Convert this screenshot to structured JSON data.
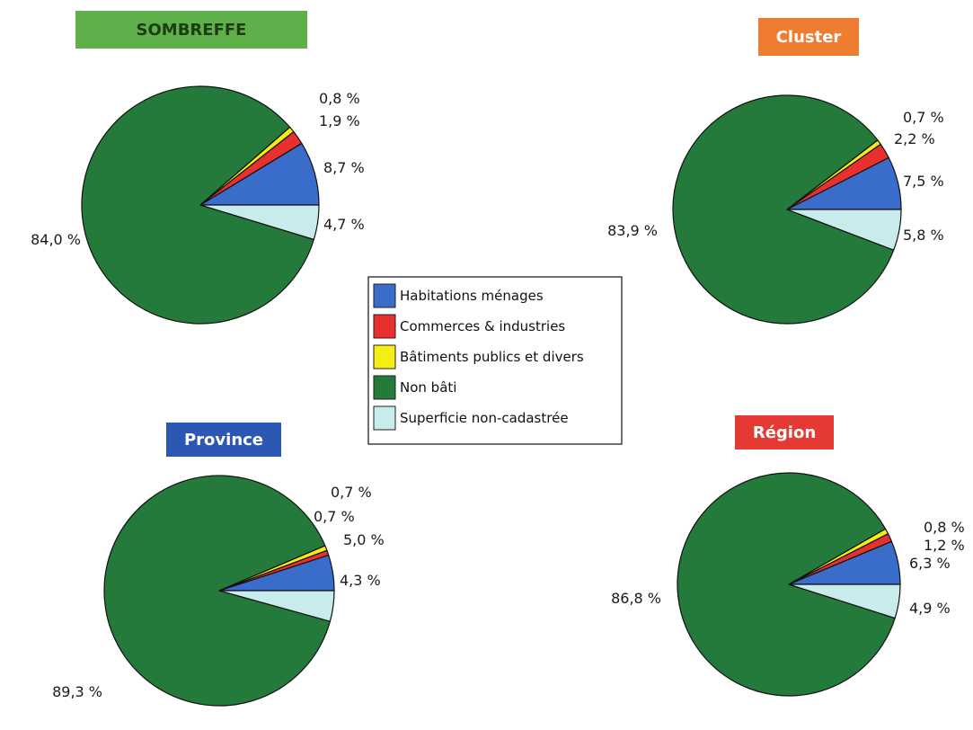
{
  "chart_data": [
    {
      "type": "pie",
      "title": "SOMBREFFE",
      "title_color": "#5fb04a",
      "title_text_color": "#1b3d12",
      "categories": [
        "Habitations ménages",
        "Commerces & industries",
        "Bâtiments publics et divers",
        "Non bâti",
        "Superficie non-cadastrée"
      ],
      "values": [
        8.7,
        1.9,
        0.8,
        84.0,
        4.7
      ],
      "labels": [
        "8,7 %",
        "1,9 %",
        "0,8 %",
        "84,0 %",
        "4,7 %"
      ]
    },
    {
      "type": "pie",
      "title": "Cluster",
      "title_color": "#ee7d2f",
      "title_text_color": "#ffffff",
      "categories": [
        "Habitations ménages",
        "Commerces & industries",
        "Bâtiments publics et divers",
        "Non bâti",
        "Superficie non-cadastrée"
      ],
      "values": [
        7.5,
        2.2,
        0.7,
        83.9,
        5.8
      ],
      "labels": [
        "7,5 %",
        "2,2 %",
        "0,7 %",
        "83,9 %",
        "5,8 %"
      ]
    },
    {
      "type": "pie",
      "title": "Province",
      "title_color": "#2c57b3",
      "title_text_color": "#ffffff",
      "categories": [
        "Habitations ménages",
        "Commerces & industries",
        "Bâtiments publics et divers",
        "Non bâti",
        "Superficie non-cadastrée"
      ],
      "values": [
        5.0,
        0.7,
        0.7,
        89.3,
        4.3
      ],
      "labels": [
        "5,0 %",
        "0,7 %",
        "0,7 %",
        "89,3 %",
        "4,3 %"
      ]
    },
    {
      "type": "pie",
      "title": "Région",
      "title_color": "#e53a33",
      "title_text_color": "#ffffff",
      "categories": [
        "Habitations ménages",
        "Commerces & industries",
        "Bâtiments publics et divers",
        "Non bâti",
        "Superficie non-cadastrée"
      ],
      "values": [
        6.3,
        1.2,
        0.8,
        86.8,
        4.9
      ],
      "labels": [
        "6,3 %",
        "1,2 %",
        "0,8 %",
        "86,8 %",
        "4,9 %"
      ]
    }
  ],
  "legend": {
    "placement": "center",
    "items": [
      {
        "label": "Habitations ménages",
        "color": "#3a6cc9"
      },
      {
        "label": "Commerces & industries",
        "color": "#e8302e"
      },
      {
        "label": "Bâtiments publics et divers",
        "color": "#f5ee15"
      },
      {
        "label": "Non bâti",
        "color": "#237a3b"
      },
      {
        "label": "Superficie non-cadastrée",
        "color": "#c8ebec"
      }
    ]
  }
}
